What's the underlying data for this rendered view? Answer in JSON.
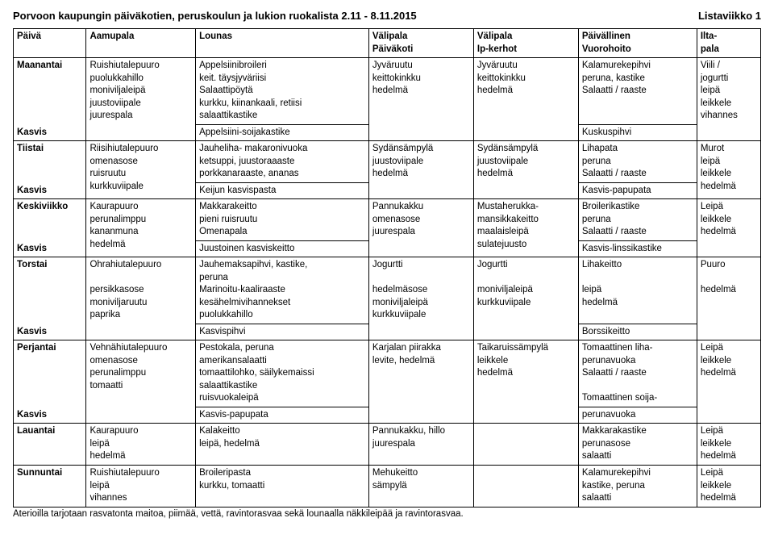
{
  "title_left": "Porvoon kaupungin päiväkotien, peruskoulun ja lukion ruokalista 2.11 - 8.11.2015",
  "title_right": "Listaviikko 1",
  "headers": {
    "day": "Päivä",
    "breakfast": "Aamupala",
    "lunch": "Lounas",
    "snack1a": "Välipala",
    "snack1b": "Päiväkoti",
    "snack2a": "Välipala",
    "snack2b": "Ip-kerhot",
    "dinnera": "Päivällinen",
    "dinnerb": "Vuorohoito",
    "eveninga": "Ilta-",
    "eveningb": "pala"
  },
  "kasvis_label": "Kasvis",
  "rows": {
    "mon": {
      "day": "Maanantai",
      "bf": "Ruishiutalepuuro\npuolukkahillo\nmoniviljaleipä\njuustoviipale\njuurespala",
      "lunch": "Appelsiinibroileri\nkeit. täysjyväriisi\nSalaattipöytä\nkurkku, kiinankaali, retiisi\nsalaattikastike",
      "lunch_kasvis": "Appelsiini-soijakastike",
      "sn1": "Jyväruutu\nkeittokinkku\nhedelmä",
      "sn2": "Jyväruutu\nkeittokinkku\nhedelmä",
      "din": "Kalamurekepihvi\nperuna, kastike\nSalaatti / raaste",
      "din_kasvis": "Kuskuspihvi",
      "ev": "Viili /\njogurtti\nleipä\nleikkele\nvihannes"
    },
    "tue": {
      "day": "Tiistai",
      "bf": "Riisihiutalepuuro\nomenasose\nruisruutu\nkurkkuviipale",
      "lunch": "Jauheliha- makaronivuoka\nketsuppi, juustoraaaste\nporkkanaraaste, ananas",
      "lunch_kasvis": "Keijun kasvispasta",
      "sn1": "Sydänsämpylä\njuustoviipale\nhedelmä",
      "sn2": "Sydänsämpylä\njuustoviipale\nhedelmä",
      "din": "Lihapata\nperuna\nSalaatti / raaste",
      "din_kasvis": "Kasvis-papupata",
      "ev": "Murot\nleipä\nleikkele\nhedelmä"
    },
    "wed": {
      "day": "Keskiviikko",
      "bf": "Kaurapuuro\nperunalimppu\nkananmuna\nhedelmä",
      "lunch": "Makkarakeitto\npieni ruisruutu\nOmenapala",
      "lunch_kasvis": "Juustoinen kasviskeitto",
      "sn1": "Pannukakku\nomenasose\njuurespala",
      "sn2": "Mustaherukka-\nmansikkakeitto\nmaalaisleipä\nsulatejuusto",
      "din": "Broilerikastike\nperuna\nSalaatti / raaste",
      "din_kasvis": "Kasvis-linssikastike",
      "ev": "Leipä\nleikkele\nhedelmä"
    },
    "thu": {
      "day": "Torstai",
      "bf": "Ohrahiutalepuuro\n\npersikkasose\nmoniviljaruutu\npaprika",
      "lunch": "Jauhemaksapihvi, kastike,\nperuna\nMarinoitu-kaaliraaste\nkesähelmivihannekset\npuolukkahillo",
      "lunch_kasvis": "Kasvispihvi",
      "sn1": "Jogurtti\n\nhedelmäsose\nmoniviljaleipä\nkurkkuviipale",
      "sn2": "Jogurtti\n\nmoniviljaleipä\nkurkkuviipale",
      "din": "Lihakeitto\n\nleipä\nhedelmä",
      "din_kasvis": "Borssikeitto",
      "ev": "Puuro\n\nhedelmä"
    },
    "fri": {
      "day": "Perjantai",
      "bf": "Vehnähiutalepuuro\nomenasose\nperunalimppu\ntomaatti",
      "lunch": "Pestokala, peruna\namerikansalaatti\ntomaattilohko, säilykemaissi\nsalaattikastike\nruisvuokaleipä",
      "lunch_kasvis": "Kasvis-papupata",
      "sn1": "Karjalan piirakka\nlevite, hedelmä",
      "sn2": "Taikaruissämpylä\nleikkele\nhedelmä",
      "din": "Tomaattinen liha-\nperunavuoka\nSalaatti / raaste\n\nTomaattinen soija-",
      "din_kasvis": "perunavuoka",
      "ev": "Leipä\nleikkele\nhedelmä"
    },
    "sat": {
      "day": "Lauantai",
      "bf": "Kaurapuuro\nleipä\nhedelmä",
      "lunch": "Kalakeitto\nleipä, hedelmä",
      "sn1": "Pannukakku, hillo\njuurespala",
      "sn2": "",
      "din": "Makkarakastike\nperunasose\nsalaatti",
      "ev": "Leipä\nleikkele\nhedelmä"
    },
    "sun": {
      "day": "Sunnuntai",
      "bf": "Ruishiutalepuuro\nleipä\nvihannes",
      "lunch": "Broileripasta\nkurkku, tomaatti",
      "sn1": "Mehukeitto\nsämpylä",
      "sn2": "",
      "din": "Kalamurekepihvi\nkastike, peruna\nsalaatti",
      "ev": "Leipä\nleikkele\nhedelmä"
    }
  },
  "footer": "Aterioilla tarjotaan rasvatonta maitoa, piimää, vettä, ravintorasvaa sekä lounaalla näkkileipää ja ravintorasvaa."
}
